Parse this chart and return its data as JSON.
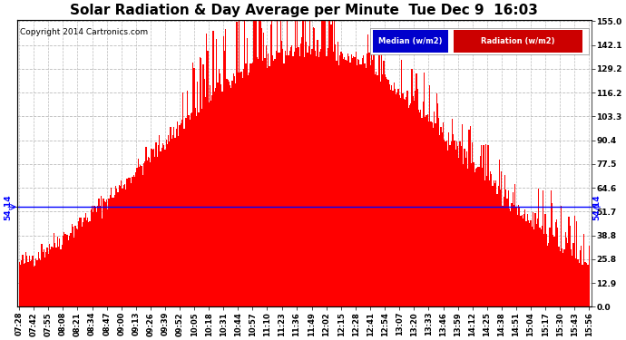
{
  "title": "Solar Radiation & Day Average per Minute  Tue Dec 9  16:03",
  "copyright": "Copyright 2014 Cartronics.com",
  "median_value": 54.14,
  "median_label": "54.14",
  "yticks": [
    0.0,
    12.9,
    25.8,
    38.8,
    51.7,
    64.6,
    77.5,
    90.4,
    103.3,
    116.2,
    129.2,
    142.1,
    155.0
  ],
  "ymax": 155.0,
  "ymin": 0.0,
  "bg_color": "#ffffff",
  "grid_color": "#bbbbbb",
  "bar_color": "#ff0000",
  "median_line_color": "#0000ff",
  "x_labels": [
    "07:28",
    "07:42",
    "07:55",
    "08:08",
    "08:21",
    "08:34",
    "08:47",
    "09:00",
    "09:13",
    "09:26",
    "09:39",
    "09:52",
    "10:05",
    "10:18",
    "10:31",
    "10:44",
    "10:57",
    "11:10",
    "11:23",
    "11:36",
    "11:49",
    "12:02",
    "12:15",
    "12:28",
    "12:41",
    "12:54",
    "13:07",
    "13:20",
    "13:33",
    "13:46",
    "13:59",
    "14:12",
    "14:25",
    "14:38",
    "14:51",
    "15:04",
    "15:17",
    "15:30",
    "15:43",
    "15:56"
  ],
  "legend_median_color": "#0000cc",
  "legend_radiation_color": "#cc0000",
  "title_fontsize": 11,
  "tick_fontsize": 6.5,
  "copyright_fontsize": 6.5
}
